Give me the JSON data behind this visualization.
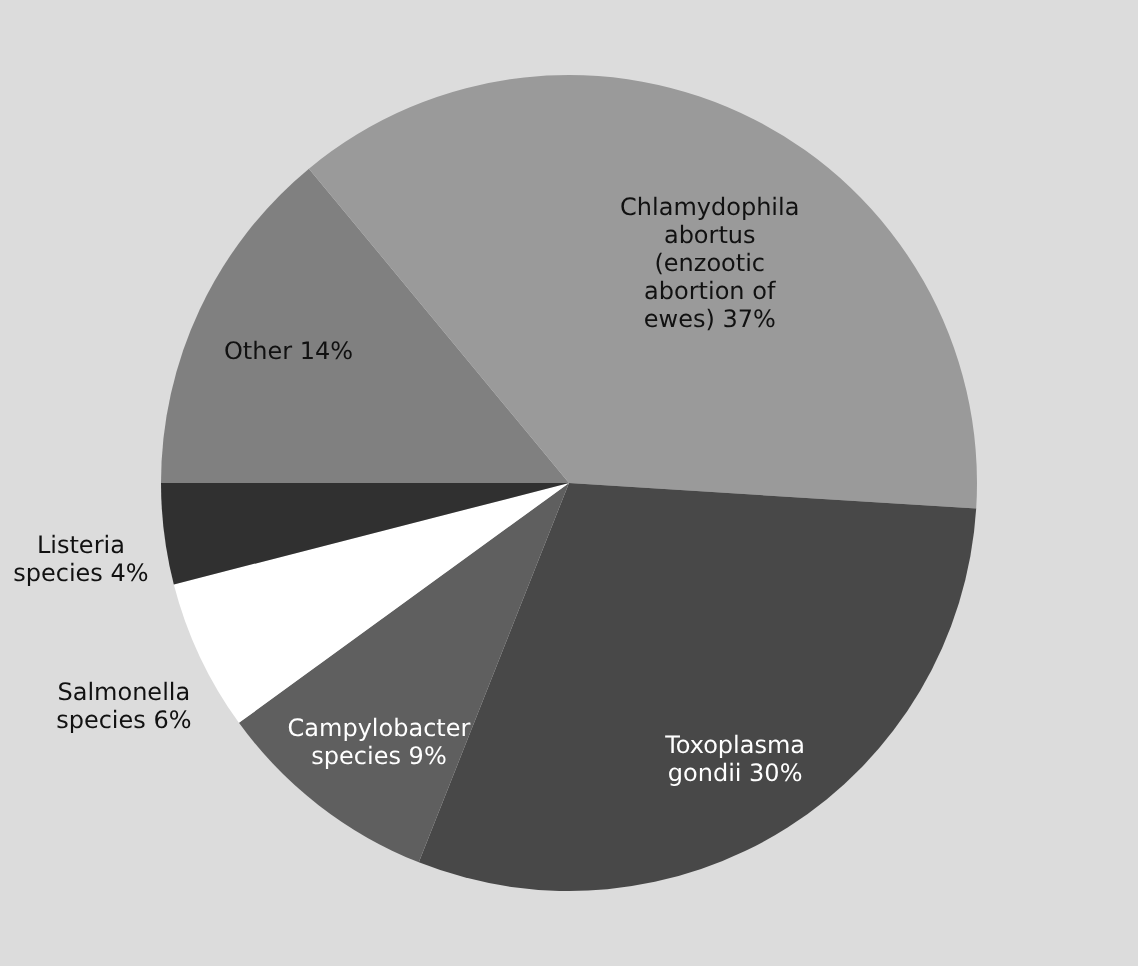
{
  "chart_data": {
    "type": "pie",
    "categories": [
      "Other",
      "Chlamydophila abortus (enzootic abortion of ewes)",
      "Toxoplasma gondii",
      "Campylobacter species",
      "Salmonella species",
      "Listeria species"
    ],
    "values": [
      14,
      37,
      30,
      9,
      6,
      4
    ],
    "colors": [
      "#808080",
      "#9a9a9a",
      "#484848",
      "#5f5f5f",
      "#ffffff",
      "#303030"
    ],
    "value_labels": [
      "14%",
      "37%",
      "30%",
      "9%",
      "6%",
      "4%"
    ]
  }
}
